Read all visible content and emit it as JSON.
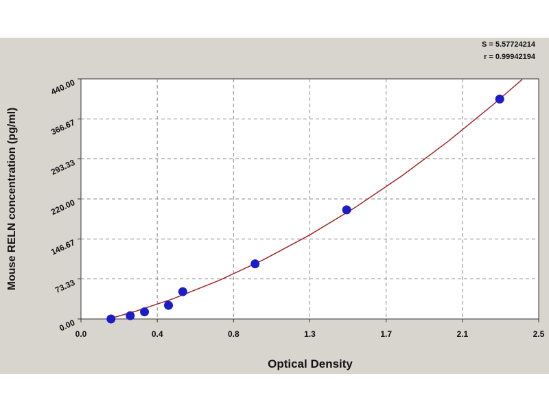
{
  "chart_data": {
    "type": "scatter",
    "annotations": [
      "S = 5.57724214",
      "r = 0.99942194"
    ],
    "x_label": "Optical Density",
    "y_label": "Mouse RELN concentration (pg/ml)",
    "xlim": [
      0,
      2.5
    ],
    "ylim": [
      0,
      440
    ],
    "xticks": [
      {
        "value": 0,
        "label": "0.0"
      },
      {
        "value": 0.4167,
        "label": "0.4"
      },
      {
        "value": 0.8333,
        "label": "0.8"
      },
      {
        "value": 1.25,
        "label": "1.3"
      },
      {
        "value": 1.6667,
        "label": "1.7"
      },
      {
        "value": 2.0833,
        "label": "2.1"
      },
      {
        "value": 2.5,
        "label": "2.5"
      }
    ],
    "yticks": [
      {
        "value": 0,
        "label": "0.00"
      },
      73.33,
      146.67,
      {
        "value": 220,
        "label": "220.00"
      },
      293.33,
      366.67,
      {
        "value": 440,
        "label": "440.00"
      }
    ],
    "grid": true,
    "series": [
      {
        "type": "line",
        "color": "#a02828",
        "x": [
          0.15,
          0.3,
          0.5,
          0.75,
          1.0,
          1.25,
          1.5,
          1.75,
          2.0,
          2.25,
          2.41
        ],
        "values": [
          0,
          14.3,
          36.7,
          70.0,
          109.1,
          154.1,
          204.9,
          261.6,
          324.1,
          392.5,
          439
        ]
      },
      {
        "type": "scatter",
        "color": "#1c1cc8",
        "x": [
          0.164,
          0.269,
          0.347,
          0.478,
          0.556,
          0.951,
          1.451,
          2.287
        ],
        "values": [
          0,
          6,
          13,
          25,
          50,
          101,
          200,
          403
        ]
      }
    ]
  }
}
